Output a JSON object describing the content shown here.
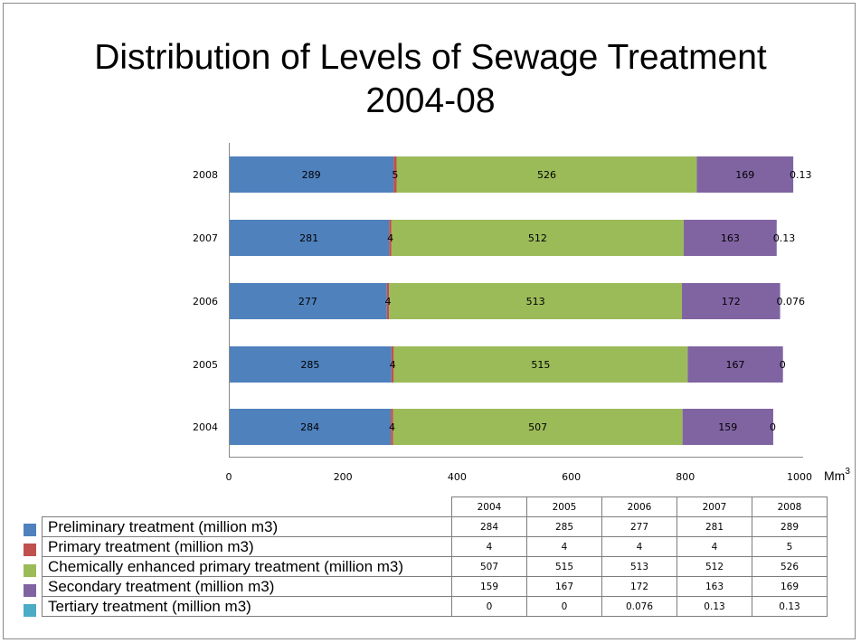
{
  "title_line1": "Distribution of Levels of Sewage Treatment",
  "title_line2": "2004-08",
  "colors": {
    "preliminary": "#4f81bd",
    "primary": "#c0504d",
    "chemically_enhanced": "#9bbb59",
    "secondary": "#8064a2",
    "tertiary": "#4bacc6"
  },
  "chart_data": {
    "type": "bar",
    "orientation": "horizontal",
    "stacked": true,
    "title": "Distribution of Levels of Sewage Treatment 2004-08",
    "xlabel": "Mm3",
    "ylabel": "",
    "xlim": [
      0,
      1000
    ],
    "xticks": [
      0,
      200,
      400,
      600,
      800,
      1000
    ],
    "categories": [
      "2004",
      "2005",
      "2006",
      "2007",
      "2008"
    ],
    "series": [
      {
        "name": "Preliminary treatment (million m3)",
        "key": "preliminary",
        "values": [
          284,
          285,
          277,
          281,
          289
        ]
      },
      {
        "name": "Primary treatment (million m3)",
        "key": "primary",
        "values": [
          4,
          4,
          4,
          4,
          5
        ]
      },
      {
        "name": "Chemically enhanced primary treatment (million m3)",
        "key": "chemically_enhanced",
        "values": [
          507,
          515,
          513,
          512,
          526
        ]
      },
      {
        "name": "Secondary treatment (million m3)",
        "key": "secondary",
        "values": [
          159,
          167,
          172,
          163,
          169
        ]
      },
      {
        "name": "Tertiary treatment (million m3)",
        "key": "tertiary",
        "values": [
          0,
          0,
          0.076,
          0.13,
          0.13
        ]
      }
    ],
    "data_labels": true,
    "grid": false,
    "legend": "bottom (data table with legend keys)"
  },
  "axis_unit": {
    "base": "Mm",
    "sup": "3"
  },
  "table": {
    "header": [
      "2004",
      "2005",
      "2006",
      "2007",
      "2008"
    ],
    "rows": [
      {
        "label": "Preliminary treatment (million m3)",
        "values": [
          "284",
          "285",
          "277",
          "281",
          "289"
        ]
      },
      {
        "label": "Primary treatment (million m3)",
        "values": [
          "4",
          "4",
          "4",
          "4",
          "5"
        ]
      },
      {
        "label": "Chemically enhanced primary treatment (million m3)",
        "values": [
          "507",
          "515",
          "513",
          "512",
          "526"
        ]
      },
      {
        "label": "Secondary treatment (million m3)",
        "values": [
          "159",
          "167",
          "172",
          "163",
          "169"
        ]
      },
      {
        "label": "Tertiary treatment (million m3)",
        "values": [
          "0",
          "0",
          "0.076",
          "0.13",
          "0.13"
        ]
      }
    ]
  }
}
